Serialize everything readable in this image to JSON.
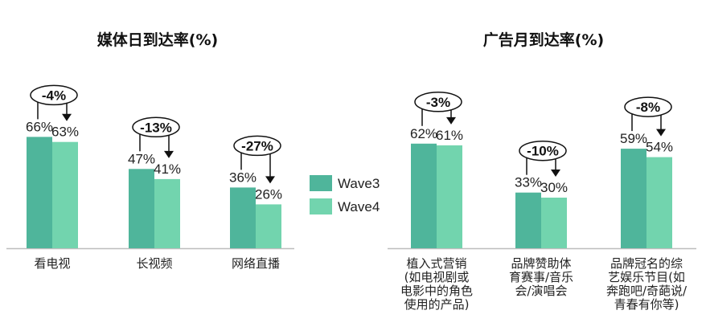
{
  "legend": [
    {
      "name": "Wave3",
      "color": "#4fb59b"
    },
    {
      "name": "Wave4",
      "color": "#72d4ae"
    }
  ],
  "chart_data": [
    {
      "type": "bar",
      "title": "媒体日到达率(%)",
      "categories": [
        [
          "看电视"
        ],
        [
          "长视频"
        ],
        [
          "网络直播"
        ]
      ],
      "series": [
        {
          "name": "Wave3",
          "values": [
            66,
            47,
            36
          ],
          "labels": [
            "66%",
            "47%",
            "36%"
          ]
        },
        {
          "name": "Wave4",
          "values": [
            63,
            41,
            26
          ],
          "labels": [
            "63%",
            "41%",
            "26%"
          ]
        }
      ],
      "changes": [
        "-4%",
        "-13%",
        "-27%"
      ],
      "ylim": [
        0,
        100
      ]
    },
    {
      "type": "bar",
      "title": "广告月到达率(%)",
      "categories": [
        [
          "植入式营销",
          "(如电视剧或",
          "电影中的角色",
          "使用的产品)"
        ],
        [
          "品牌赞助体",
          "育赛事/音乐",
          "会/演唱会"
        ],
        [
          "品牌冠名的综",
          "艺娱乐节目(如",
          "奔跑吧/奇葩说/",
          "青春有你等)"
        ]
      ],
      "series": [
        {
          "name": "Wave3",
          "values": [
            62,
            33,
            59
          ],
          "labels": [
            "62%",
            "33%",
            "59%"
          ]
        },
        {
          "name": "Wave4",
          "values": [
            61,
            30,
            54
          ],
          "labels": [
            "61%",
            "30%",
            "54%"
          ]
        }
      ],
      "changes": [
        "-3%",
        "-10%",
        "-8%"
      ],
      "ylim": [
        0,
        100
      ]
    }
  ]
}
